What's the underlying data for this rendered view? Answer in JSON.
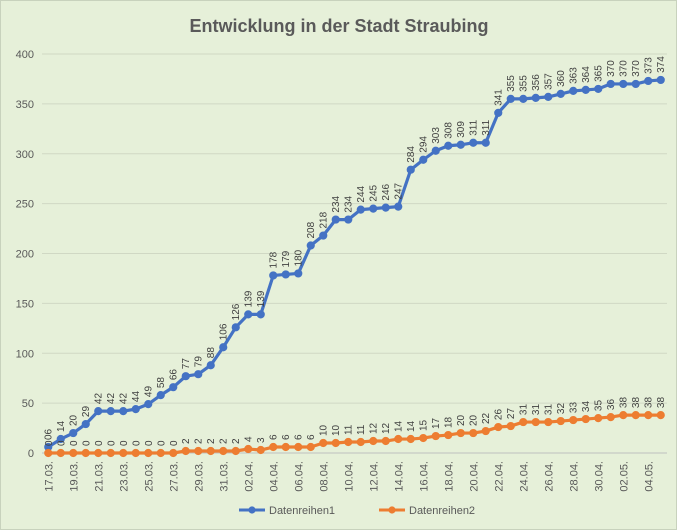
{
  "chart_data": {
    "type": "line",
    "title": "Entwicklung in der Stadt Straubing",
    "ylim": [
      0,
      400
    ],
    "yticks": [
      0,
      50,
      100,
      150,
      200,
      250,
      300,
      350,
      400
    ],
    "grid": true,
    "legend_position": "bottom",
    "x": [
      "17.03.",
      "18.03.",
      "19.03.",
      "20.03.",
      "21.03.",
      "22.03.",
      "23.03.",
      "24.03.",
      "25.03.",
      "26.03.",
      "27.03.",
      "28.03.",
      "29.03.",
      "30.03.",
      "31.03.",
      "01.04.",
      "02.04.",
      "03.04.",
      "04.04.",
      "05.04.",
      "06.04.",
      "07.04.",
      "08.04.",
      "09.04.",
      "10.04.",
      "11.04.",
      "12.04.",
      "13.04.",
      "14.04.",
      "15.04.",
      "16.04.",
      "17.04.",
      "18.04.",
      "19.04.",
      "20.04.",
      "21.04.",
      "22.04.",
      "23.04.",
      "24.04.",
      "25.04.",
      "26.04.",
      "27.04.",
      "28.04.",
      "29.04.",
      "30.04.",
      "01.05.",
      "02.05.",
      "03.05.",
      "04.05.",
      "05.05."
    ],
    "x_tick_labels": [
      "17.03.",
      "19.03.",
      "21.03.",
      "23.03.",
      "25.03.",
      "27.03.",
      "29.03.",
      "31.03.",
      "02.04.",
      "04.04.",
      "06.04.",
      "08.04.",
      "10.04.",
      "12.04.",
      "14.04.",
      "16.04.",
      "18.04.",
      "20.04.",
      "22.04.",
      "24.04.",
      "26.04.",
      "28.04.",
      "30.04.",
      "02.05.",
      "04.05."
    ],
    "series": [
      {
        "name": "Datenreihen1",
        "color": "#4472c4",
        "values": [
          6,
          14,
          20,
          29,
          42,
          42,
          42,
          44,
          49,
          58,
          66,
          77,
          79,
          88,
          106,
          126,
          139,
          139,
          178,
          179,
          180,
          208,
          218,
          234,
          234,
          244,
          245,
          246,
          247,
          284,
          294,
          303,
          308,
          309,
          311,
          311,
          341,
          355,
          355,
          356,
          357,
          360,
          363,
          364,
          365,
          370,
          370,
          370,
          373,
          374
        ],
        "labels": [
          "06",
          "14",
          "20",
          "29",
          "42",
          "42",
          "42",
          "44",
          "49",
          "58",
          "66",
          "77",
          "79",
          "88",
          "106",
          "126",
          "139",
          "139",
          "178",
          "179",
          "180",
          "208",
          "218",
          "234",
          "234",
          "244",
          "245",
          "246",
          "247",
          "284",
          "294",
          "303",
          "308",
          "309",
          "311",
          "311",
          "341",
          "355",
          "355",
          "356",
          "357",
          "360",
          "363",
          "364",
          "365",
          "370",
          "370",
          "370",
          "373",
          "374"
        ]
      },
      {
        "name": "Datenreihen2",
        "color": "#ed7d31",
        "values": [
          0,
          0,
          0,
          0,
          0,
          0,
          0,
          0,
          0,
          0,
          0,
          2,
          2,
          2,
          2,
          2,
          4,
          3,
          6,
          6,
          6,
          6,
          10,
          10,
          11,
          11,
          12,
          12,
          14,
          14,
          15,
          17,
          18,
          20,
          20,
          22,
          26,
          27,
          31,
          31,
          31,
          32,
          33,
          34,
          35,
          36,
          38,
          38,
          38,
          38
        ],
        "labels": [
          "0",
          "0",
          "0",
          "0",
          "0",
          "0",
          "0",
          "0",
          "0",
          "0",
          "0",
          "2",
          "2",
          "2",
          "2",
          "2",
          "4",
          "3",
          "6",
          "6",
          "6",
          "6",
          "10",
          "10",
          "11",
          "11",
          "12",
          "12",
          "14",
          "14",
          "15",
          "17",
          "18",
          "20",
          "20",
          "22",
          "26",
          "27",
          "31",
          "31",
          "31",
          "32",
          "33",
          "34",
          "35",
          "36",
          "38",
          "38",
          "38",
          "38"
        ]
      }
    ]
  }
}
